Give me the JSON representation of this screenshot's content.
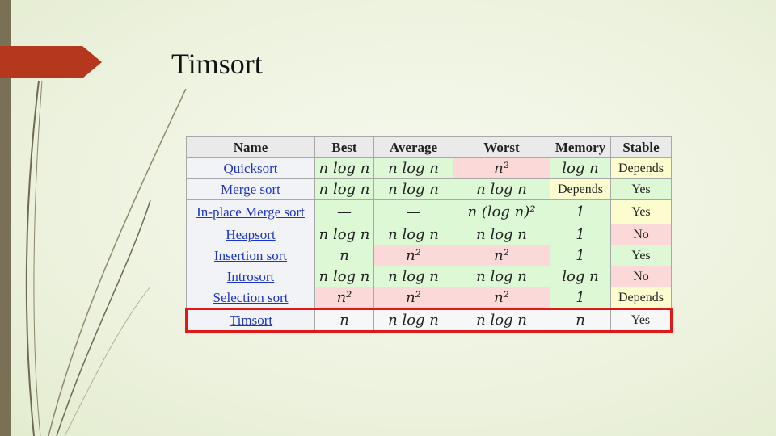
{
  "slide": {
    "title": "Timsort"
  },
  "table": {
    "headers": [
      "Name",
      "Best",
      "Average",
      "Worst",
      "Memory",
      "Stable"
    ],
    "rows": [
      {
        "name": "Quicksort",
        "best": "n log n",
        "average": "n log n",
        "worst": "n²",
        "memory": "log n",
        "stable": "Depends"
      },
      {
        "name": "Merge sort",
        "best": "n log n",
        "average": "n log n",
        "worst": "n log n",
        "memory": "Depends",
        "stable": "Yes"
      },
      {
        "name": "In-place Merge sort",
        "best": "—",
        "average": "—",
        "worst": "n (log n)²",
        "memory": "1",
        "stable": "Yes"
      },
      {
        "name": "Heapsort",
        "best": "n log n",
        "average": "n log n",
        "worst": "n log n",
        "memory": "1",
        "stable": "No"
      },
      {
        "name": "Insertion sort",
        "best": "n",
        "average": "n²",
        "worst": "n²",
        "memory": "1",
        "stable": "Yes"
      },
      {
        "name": "Introsort",
        "best": "n log n",
        "average": "n log n",
        "worst": "n log n",
        "memory": "log n",
        "stable": "No"
      },
      {
        "name": "Selection sort",
        "best": "n²",
        "average": "n²",
        "worst": "n²",
        "memory": "1",
        "stable": "Depends"
      },
      {
        "name": "Timsort",
        "best": "n",
        "average": "n log n",
        "worst": "n log n",
        "memory": "n",
        "stable": "Yes"
      }
    ]
  },
  "colors": {
    "good": "#dcf8d4",
    "bad": "#fcd9d9",
    "neutral": "#fcfccf",
    "highlight_border": "#e01818",
    "accent_arrow": "#b5371d",
    "link": "#1a35c8"
  }
}
